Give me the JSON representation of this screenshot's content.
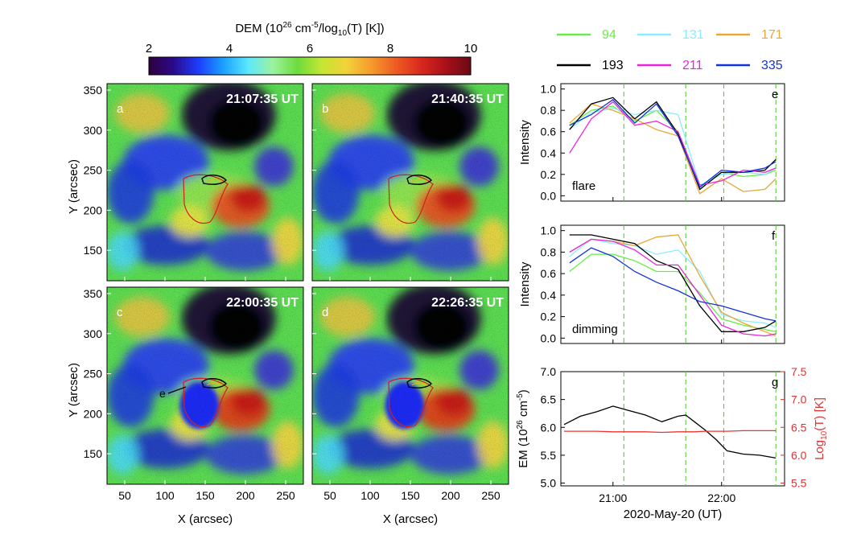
{
  "colorbar": {
    "title_main": "DEM (10",
    "title_exp1": "26",
    "title_mid": " cm",
    "title_exp2": "-5",
    "title_tail": "/log",
    "title_sub": "10",
    "title_end": "(T) [K])",
    "ticks": [
      "2",
      "4",
      "6",
      "8",
      "10"
    ],
    "range": [
      2,
      10
    ],
    "stops": [
      "#30003a",
      "#2a0a8c",
      "#1d3cff",
      "#1aa0ff",
      "#5ae7ff",
      "#9cf2a0",
      "#6ddc3c",
      "#c6e632",
      "#f2d13a",
      "#f59a2c",
      "#ee5a22",
      "#d8281e",
      "#a8101a",
      "#6a0a14"
    ]
  },
  "maps": {
    "panels": [
      {
        "letter": "a",
        "time": "21:07:35 UT"
      },
      {
        "letter": "b",
        "time": "21:40:35 UT"
      },
      {
        "letter": "c",
        "time": "22:00:35 UT"
      },
      {
        "letter": "d",
        "time": "22:26:35 UT"
      }
    ],
    "arrow_label": "e",
    "x_ticks": [
      "50",
      "100",
      "150",
      "200",
      "250"
    ],
    "y_ticks": [
      "350",
      "300",
      "250",
      "200",
      "150"
    ],
    "xlabel": "X (arcsec)",
    "ylabel": "Y (arcsec)"
  },
  "legend": {
    "items": [
      {
        "name": "94",
        "color": "#66ee44"
      },
      {
        "name": "131",
        "color": "#88eeff"
      },
      {
        "name": "171",
        "color": "#e8a838"
      },
      {
        "name": "193",
        "color": "#000000"
      },
      {
        "name": "211",
        "color": "#ee22dd"
      },
      {
        "name": "335",
        "color": "#1133dd"
      }
    ]
  },
  "chart_data": [
    {
      "type": "line",
      "panel": "e",
      "annotation": "flare",
      "ylabel": "Intensity",
      "y_ticks": [
        "1.0",
        "0.8",
        "0.6",
        "0.4",
        "0.2",
        "0.0"
      ],
      "ylim": [
        -0.05,
        1.05
      ],
      "x_hours": [
        20.6,
        20.8,
        21.0,
        21.2,
        21.4,
        21.6,
        21.8,
        22.0,
        22.2,
        22.4,
        22.5
      ],
      "series": [
        {
          "name": "94",
          "color": "#66ee44",
          "values": [
            0.66,
            0.8,
            0.84,
            0.7,
            0.8,
            0.6,
            0.08,
            0.22,
            0.18,
            0.2,
            0.24
          ]
        },
        {
          "name": "131",
          "color": "#88eeff",
          "values": [
            0.62,
            0.78,
            0.82,
            0.76,
            0.8,
            0.76,
            0.1,
            0.2,
            0.22,
            0.2,
            0.26
          ]
        },
        {
          "name": "171",
          "color": "#e8a838",
          "values": [
            0.68,
            0.86,
            0.8,
            0.72,
            0.62,
            0.56,
            0.02,
            0.16,
            0.04,
            0.06,
            0.16
          ]
        },
        {
          "name": "193",
          "color": "#000000",
          "values": [
            0.62,
            0.86,
            0.92,
            0.72,
            0.88,
            0.58,
            0.06,
            0.22,
            0.22,
            0.24,
            0.34
          ]
        },
        {
          "name": "211",
          "color": "#ee22dd",
          "values": [
            0.4,
            0.72,
            0.88,
            0.66,
            0.7,
            0.6,
            0.1,
            0.14,
            0.24,
            0.22,
            0.26
          ]
        },
        {
          "name": "335",
          "color": "#1133dd",
          "values": [
            0.66,
            0.76,
            0.9,
            0.68,
            0.86,
            0.56,
            0.08,
            0.24,
            0.22,
            0.26,
            0.32
          ]
        }
      ],
      "vlines_hours": [
        21.1,
        21.67,
        22.02,
        22.5
      ]
    },
    {
      "type": "line",
      "panel": "f",
      "annotation": "dimming",
      "ylabel": "Intensity",
      "y_ticks": [
        "1.0",
        "0.8",
        "0.6",
        "0.4",
        "0.2",
        "0.0"
      ],
      "ylim": [
        -0.05,
        1.05
      ],
      "x_hours": [
        20.6,
        20.8,
        21.0,
        21.2,
        21.4,
        21.6,
        21.8,
        22.0,
        22.2,
        22.4,
        22.5
      ],
      "series": [
        {
          "name": "94",
          "color": "#66ee44",
          "values": [
            0.62,
            0.78,
            0.78,
            0.72,
            0.62,
            0.62,
            0.42,
            0.18,
            0.12,
            0.08,
            0.06
          ]
        },
        {
          "name": "131",
          "color": "#88eeff",
          "values": [
            0.76,
            0.92,
            0.88,
            0.86,
            0.78,
            0.82,
            0.62,
            0.22,
            0.16,
            0.14,
            0.1
          ]
        },
        {
          "name": "171",
          "color": "#e8a838",
          "values": [
            0.8,
            0.92,
            0.9,
            0.86,
            0.94,
            0.96,
            0.58,
            0.24,
            0.14,
            0.06,
            0.02
          ]
        },
        {
          "name": "193",
          "color": "#000000",
          "values": [
            0.96,
            0.96,
            0.92,
            0.88,
            0.72,
            0.64,
            0.3,
            0.06,
            0.06,
            0.1,
            0.16
          ]
        },
        {
          "name": "211",
          "color": "#ee22dd",
          "values": [
            0.8,
            0.92,
            0.9,
            0.82,
            0.68,
            0.68,
            0.4,
            0.12,
            0.04,
            0.02,
            0.04
          ]
        },
        {
          "name": "335",
          "color": "#1133dd",
          "values": [
            0.7,
            0.84,
            0.76,
            0.62,
            0.52,
            0.44,
            0.34,
            0.3,
            0.24,
            0.18,
            0.16
          ]
        }
      ],
      "vlines_hours": [
        21.1,
        21.67,
        22.02,
        22.5
      ]
    },
    {
      "type": "line",
      "panel": "g",
      "ylabel_left_main": "EM (10",
      "ylabel_left_exp1": "26",
      "ylabel_left_mid": " cm",
      "ylabel_left_exp2": "-5",
      "ylabel_left_end": ")",
      "ylabel_right_main": "Log",
      "ylabel_right_sub": "10",
      "ylabel_right_end": "(T) [K]",
      "y_ticks_left": [
        "7.0",
        "6.5",
        "6.0",
        "5.5",
        "5.0"
      ],
      "y_ticks_right": [
        "7.5",
        "7.0",
        "6.5",
        "6.0",
        "5.5"
      ],
      "ylim_left": [
        4.95,
        7.0
      ],
      "ylim_right": [
        5.45,
        7.5
      ],
      "xlabel": "2020-May-20 (UT)",
      "x_ticks": [
        "21:00",
        "22:00"
      ],
      "x_tick_hours": [
        21.0,
        22.0
      ],
      "xlim_hours": [
        20.52,
        22.58
      ],
      "x_hours": [
        20.55,
        20.7,
        20.85,
        21.0,
        21.15,
        21.3,
        21.45,
        21.6,
        21.67,
        21.75,
        21.85,
        21.95,
        22.05,
        22.2,
        22.35,
        22.5
      ],
      "series": [
        {
          "name": "EM",
          "color": "#000000",
          "values": [
            6.05,
            6.2,
            6.28,
            6.38,
            6.3,
            6.22,
            6.1,
            6.2,
            6.22,
            6.1,
            5.95,
            5.78,
            5.58,
            5.52,
            5.5,
            5.45
          ]
        },
        {
          "name": "T",
          "color": "#ee3333",
          "axis": "right",
          "values": [
            6.43,
            6.43,
            6.43,
            6.42,
            6.42,
            6.42,
            6.41,
            6.42,
            6.42,
            6.42,
            6.43,
            6.43,
            6.43,
            6.44,
            6.44,
            6.44
          ]
        }
      ],
      "vlines_hours": [
        21.1,
        21.67,
        22.02,
        22.5
      ]
    }
  ]
}
